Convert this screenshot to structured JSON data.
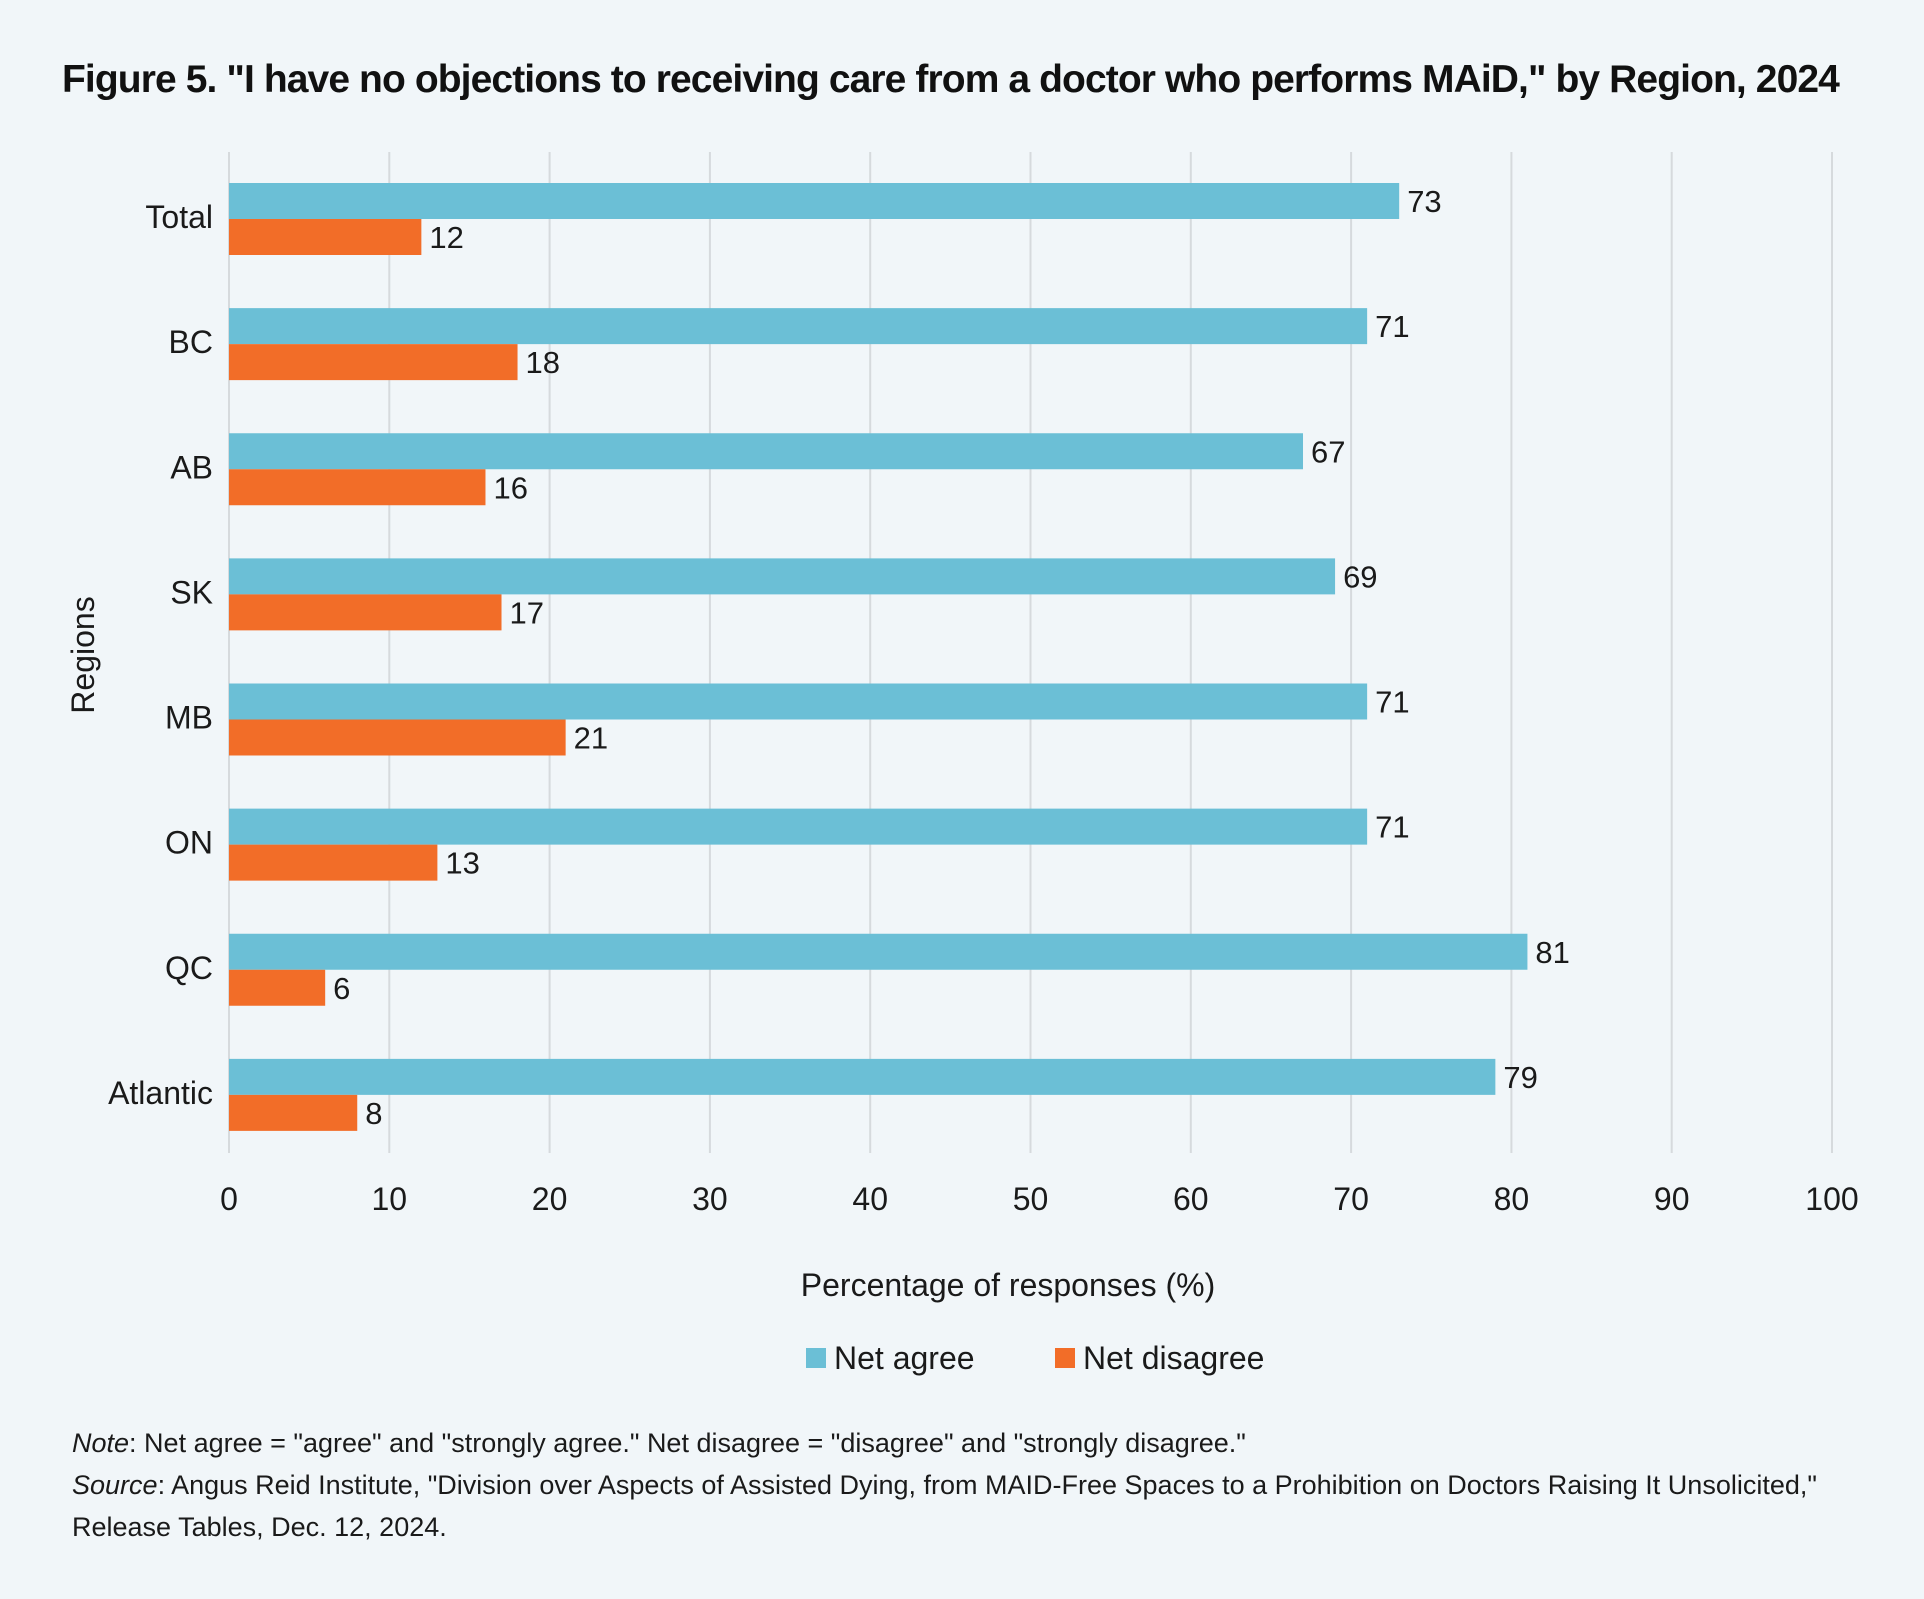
{
  "chart_data": {
    "type": "bar",
    "orientation": "horizontal",
    "title": "Figure 5. \"I have no objections to receiving care from a doctor who performs MAiD,\" by Region, 2024",
    "xlabel": "Percentage of responses (%)",
    "ylabel": "Regions",
    "categories": [
      "Total",
      "BC",
      "AB",
      "SK",
      "MB",
      "ON",
      "QC",
      "Atlantic"
    ],
    "series": [
      {
        "name": "Net agree",
        "color": "#6bbfd6",
        "values": [
          73,
          71,
          67,
          69,
          71,
          71,
          81,
          79
        ]
      },
      {
        "name": "Net disagree",
        "color": "#f26d28",
        "values": [
          12,
          18,
          16,
          17,
          21,
          13,
          6,
          8
        ]
      }
    ],
    "xlim": [
      0,
      100
    ],
    "xticks": [
      0,
      10,
      20,
      30,
      40,
      50,
      60,
      70,
      80,
      90,
      100
    ],
    "grid": true,
    "legend_position": "bottom"
  },
  "note": {
    "label": "Note",
    "text": ": Net agree = \"agree\" and \"strongly agree.\" Net disagree = \"disagree\" and \"strongly disagree.\""
  },
  "source": {
    "label": "Source",
    "text": ": Angus Reid Institute, \"Division over Aspects of Assisted Dying, from MAID-Free Spaces to a Prohibition on Doctors Raising It Unsolicited,\" Release Tables, Dec. 12, 2024."
  }
}
